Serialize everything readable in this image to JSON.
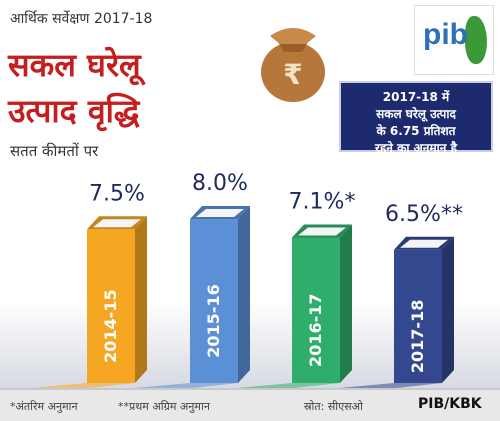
{
  "header": {
    "top_title": "आर्थिक सर्वेक्षण 2017-18",
    "title_line1": "सकल घरेलू",
    "title_line2": "उत्पाद वृद्धि",
    "subtitle": "सतत कीमतों पर"
  },
  "callout": {
    "line1": "2017-18 में",
    "line2": "सकल घरेलू उत्पाद",
    "line3": "के 6.75 प्रतिशत",
    "line4": "रहने का अनुमान है"
  },
  "icons": {
    "money_bag": "money-bag-icon",
    "logo": "pib-logo"
  },
  "logo": {
    "word": "pib"
  },
  "chart_data": {
    "type": "bar",
    "categories": [
      "2014-15",
      "2015-16",
      "2016-17",
      "2017-18"
    ],
    "values": [
      7.5,
      8.0,
      7.1,
      6.5
    ],
    "value_labels": [
      "7.5%",
      "8.0%",
      "7.1%*",
      "6.5%**"
    ],
    "colors": [
      "#f5a623",
      "#5b8fd6",
      "#2fae6b",
      "#34488f"
    ],
    "title": "सकल घरेलू उत्पाद वृद्धि",
    "subtitle": "सतत कीमतों पर",
    "ylim": [
      0,
      8.5
    ],
    "grid": false
  },
  "footer": {
    "note1": "*अंतरिम अनुमान",
    "note2": "**प्रथम अग्रिम अनुमान",
    "source": "स्रोत: सीएसओ",
    "credit": "PIB/KBK"
  }
}
